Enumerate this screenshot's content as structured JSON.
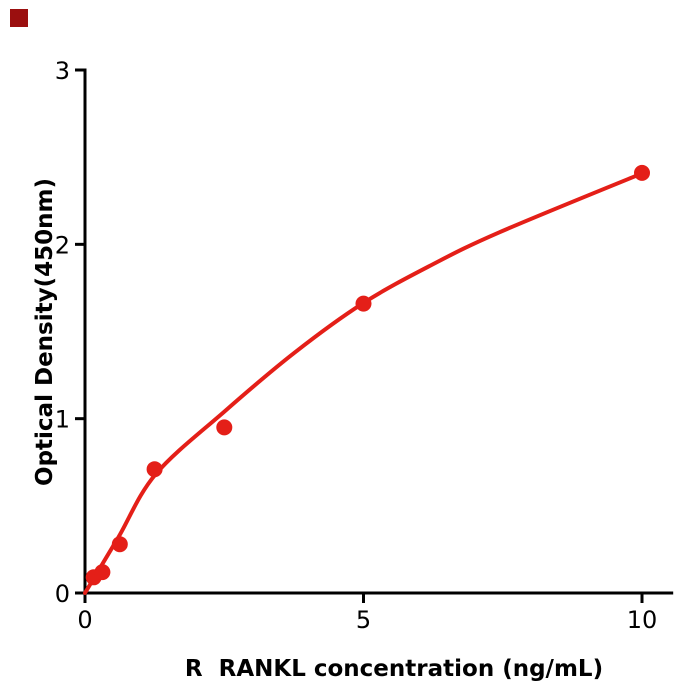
{
  "page": {
    "background": "#ffffff"
  },
  "brand_mark": {
    "color": "#9b0f0f"
  },
  "chart_data": {
    "type": "scatter",
    "title": "",
    "xlabel": "R  RANKL concentration (ng/mL)",
    "ylabel": "Optical Density(450nm)",
    "xlim": [
      0,
      10.56
    ],
    "ylim": [
      0,
      3
    ],
    "x_ticks": [
      0,
      5,
      10
    ],
    "x_tick_labels": [
      "0",
      "5",
      "10"
    ],
    "y_ticks": [
      0,
      1,
      2,
      3
    ],
    "y_tick_labels": [
      "0",
      "1",
      "2",
      "3"
    ],
    "grid": false,
    "legend": "none",
    "point_color": "#e41f18",
    "curve_color": "#e41f18",
    "axis_color": "#000000",
    "points": [
      {
        "x": 0.156,
        "y": 0.09
      },
      {
        "x": 0.313,
        "y": 0.12
      },
      {
        "x": 0.625,
        "y": 0.28
      },
      {
        "x": 1.25,
        "y": 0.71
      },
      {
        "x": 2.5,
        "y": 0.95
      },
      {
        "x": 5,
        "y": 1.66
      },
      {
        "x": 10,
        "y": 2.41
      }
    ],
    "fit_curve": [
      [
        0.0,
        0.0
      ],
      [
        0.59,
        0.315
      ],
      [
        1.27,
        0.682
      ],
      [
        2.51,
        1.043
      ],
      [
        3.77,
        1.381
      ],
      [
        4.99,
        1.662
      ],
      [
        6.2,
        1.878
      ],
      [
        7.44,
        2.069
      ],
      [
        10.0,
        2.407
      ]
    ]
  }
}
